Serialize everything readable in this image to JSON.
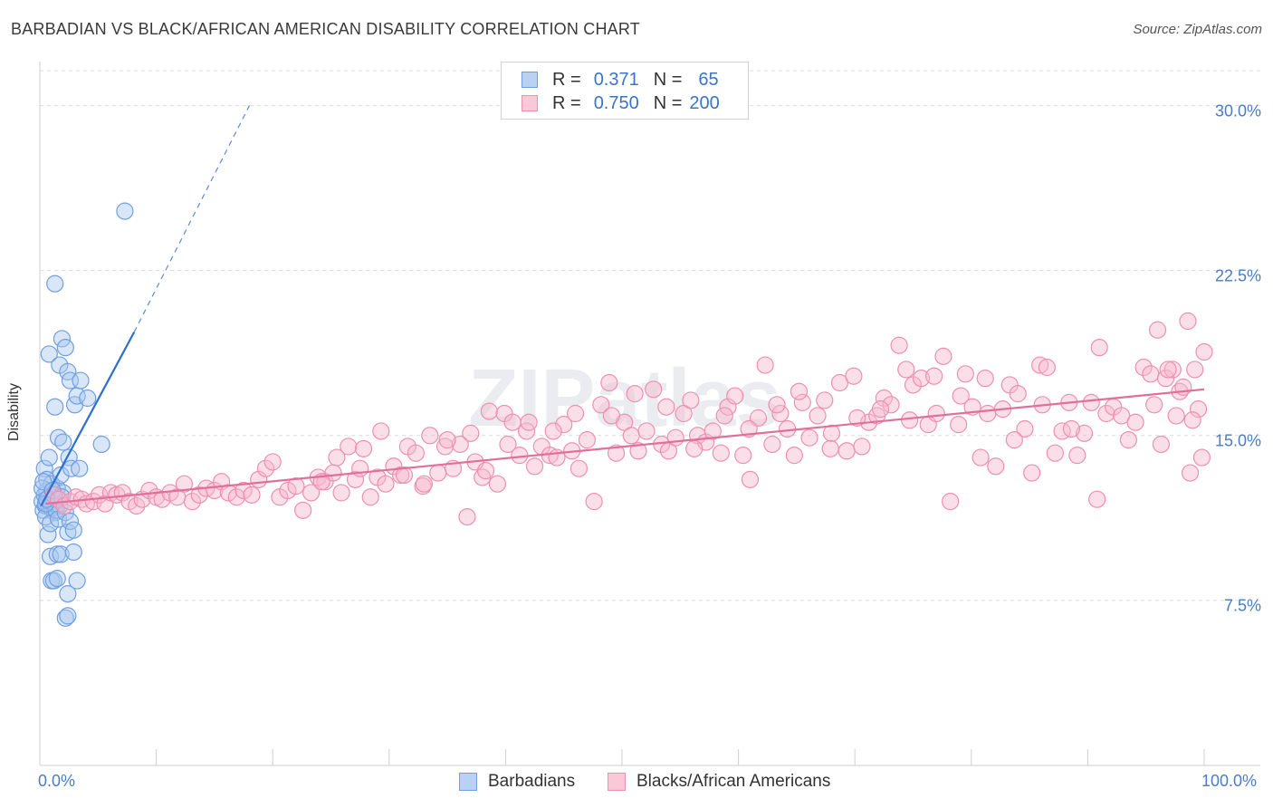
{
  "title": "BARBADIAN VS BLACK/AFRICAN AMERICAN DISABILITY CORRELATION CHART",
  "source": "Source: ZipAtlas.com",
  "watermark": "ZIPatlas",
  "colors": {
    "blue_fill": "#a9c8f0",
    "blue_stroke": "#6f9fe0",
    "blue_line": "#2f6fd0",
    "pink_fill": "#f7b9cc",
    "pink_stroke": "#ef8fb0",
    "pink_line": "#e0709a",
    "tick_text": "#4a7cc7"
  },
  "legend": {
    "rows": [
      {
        "r_label": "R =",
        "r_value": "0.371",
        "n_label": "N =",
        "n_value": "65"
      },
      {
        "r_label": "R =",
        "r_value": "0.750",
        "n_label": "N =",
        "n_value": "200"
      }
    ]
  },
  "bottom_legend": {
    "series1": "Barbadians",
    "series2": "Blacks/African Americans"
  },
  "chart_data": {
    "type": "scatter",
    "title": "BARBADIAN VS BLACK/AFRICAN AMERICAN DISABILITY CORRELATION CHART",
    "xlabel": "",
    "ylabel": "Disability",
    "xlim": [
      0,
      100
    ],
    "ylim": [
      0,
      32
    ],
    "x_tick_labels": [
      "0.0%",
      "100.0%"
    ],
    "y_ticks": [
      7.5,
      15.0,
      22.5,
      30.0
    ],
    "y_tick_labels": [
      "7.5%",
      "15.0%",
      "22.5%",
      "30.0%"
    ],
    "grid": true,
    "legend_position": "top-center",
    "series": [
      {
        "name": "Barbadians",
        "color": "#a9c8f0",
        "trend": {
          "x": [
            0.1,
            8.1
          ],
          "y": [
            11.8,
            19.7
          ],
          "dashed_extension_to": [
            18.0,
            30.0
          ]
        },
        "points": [
          [
            0.2,
            12.0
          ],
          [
            0.3,
            11.6
          ],
          [
            0.4,
            12.3
          ],
          [
            0.5,
            11.8
          ],
          [
            0.6,
            12.5
          ],
          [
            0.7,
            11.9
          ],
          [
            0.8,
            12.2
          ],
          [
            0.9,
            12.0
          ],
          [
            1.0,
            11.7
          ],
          [
            1.1,
            12.4
          ],
          [
            1.2,
            12.1
          ],
          [
            1.3,
            11.5
          ],
          [
            0.4,
            13.5
          ],
          [
            0.6,
            13.0
          ],
          [
            0.8,
            14.0
          ],
          [
            1.0,
            12.8
          ],
          [
            1.5,
            12.6
          ],
          [
            1.7,
            11.8
          ],
          [
            1.8,
            13.2
          ],
          [
            2.0,
            12.4
          ],
          [
            0.5,
            11.3
          ],
          [
            0.7,
            10.5
          ],
          [
            0.9,
            11.0
          ],
          [
            1.4,
            11.6
          ],
          [
            1.6,
            11.2
          ],
          [
            2.2,
            11.5
          ],
          [
            2.4,
            10.6
          ],
          [
            2.6,
            11.1
          ],
          [
            2.9,
            10.7
          ],
          [
            0.8,
            18.7
          ],
          [
            1.3,
            16.3
          ],
          [
            1.6,
            14.9
          ],
          [
            1.7,
            18.2
          ],
          [
            1.9,
            19.4
          ],
          [
            2.0,
            14.7
          ],
          [
            2.2,
            19.0
          ],
          [
            2.4,
            17.9
          ],
          [
            2.5,
            14.0
          ],
          [
            2.6,
            17.5
          ],
          [
            2.7,
            13.5
          ],
          [
            3.0,
            16.4
          ],
          [
            3.2,
            16.8
          ],
          [
            3.4,
            13.5
          ],
          [
            3.5,
            17.5
          ],
          [
            4.1,
            16.7
          ],
          [
            5.3,
            14.6
          ],
          [
            1.3,
            21.9
          ],
          [
            7.3,
            25.2
          ],
          [
            0.9,
            9.5
          ],
          [
            1.5,
            9.6
          ],
          [
            1.8,
            9.6
          ],
          [
            2.9,
            9.7
          ],
          [
            1.0,
            8.4
          ],
          [
            1.2,
            8.4
          ],
          [
            1.5,
            8.5
          ],
          [
            3.2,
            8.4
          ],
          [
            2.4,
            7.8
          ],
          [
            2.2,
            6.7
          ],
          [
            2.4,
            6.8
          ],
          [
            0.2,
            12.6
          ],
          [
            0.3,
            12.9
          ],
          [
            0.5,
            11.9
          ],
          [
            0.6,
            12.1
          ],
          [
            1.1,
            12.5
          ],
          [
            1.9,
            12.2
          ]
        ]
      },
      {
        "name": "Blacks/African Americans",
        "color": "#f7b9cc",
        "trend": {
          "x": [
            0.5,
            100
          ],
          "y": [
            11.9,
            17.1
          ]
        },
        "points": [
          [
            1.2,
            12.3
          ],
          [
            1.6,
            12.1
          ],
          [
            2.1,
            11.8
          ],
          [
            2.6,
            12.0
          ],
          [
            3.1,
            12.2
          ],
          [
            3.6,
            12.1
          ],
          [
            4.0,
            11.9
          ],
          [
            4.6,
            12.0
          ],
          [
            5.1,
            12.3
          ],
          [
            5.6,
            11.9
          ],
          [
            6.1,
            12.4
          ],
          [
            6.6,
            12.3
          ],
          [
            7.1,
            12.4
          ],
          [
            7.7,
            12.0
          ],
          [
            8.3,
            11.8
          ],
          [
            8.8,
            12.1
          ],
          [
            9.4,
            12.5
          ],
          [
            10.0,
            12.2
          ],
          [
            10.5,
            12.1
          ],
          [
            11.2,
            12.4
          ],
          [
            11.8,
            12.2
          ],
          [
            12.4,
            12.8
          ],
          [
            13.1,
            12.0
          ],
          [
            13.7,
            12.3
          ],
          [
            14.3,
            12.6
          ],
          [
            15.0,
            12.5
          ],
          [
            15.6,
            12.9
          ],
          [
            16.2,
            12.4
          ],
          [
            16.9,
            12.2
          ],
          [
            17.5,
            12.5
          ],
          [
            18.2,
            12.3
          ],
          [
            18.8,
            13.0
          ],
          [
            19.4,
            13.5
          ],
          [
            20.0,
            13.8
          ],
          [
            20.6,
            12.2
          ],
          [
            21.3,
            12.5
          ],
          [
            22.0,
            12.7
          ],
          [
            22.6,
            11.6
          ],
          [
            23.3,
            12.4
          ],
          [
            23.9,
            13.1
          ],
          [
            24.5,
            12.9
          ],
          [
            25.2,
            13.3
          ],
          [
            25.9,
            12.4
          ],
          [
            26.5,
            14.5
          ],
          [
            27.1,
            13.0
          ],
          [
            27.8,
            14.4
          ],
          [
            28.4,
            12.2
          ],
          [
            29.0,
            13.1
          ],
          [
            29.7,
            12.8
          ],
          [
            30.4,
            13.6
          ],
          [
            31.0,
            13.2
          ],
          [
            31.6,
            14.5
          ],
          [
            32.3,
            14.2
          ],
          [
            32.9,
            12.7
          ],
          [
            33.5,
            15.0
          ],
          [
            34.2,
            13.3
          ],
          [
            34.8,
            14.5
          ],
          [
            35.5,
            13.5
          ],
          [
            36.1,
            14.6
          ],
          [
            36.7,
            11.3
          ],
          [
            37.4,
            13.8
          ],
          [
            38.0,
            13.1
          ],
          [
            38.6,
            16.1
          ],
          [
            39.3,
            12.8
          ],
          [
            39.9,
            16.0
          ],
          [
            40.6,
            15.6
          ],
          [
            41.2,
            14.1
          ],
          [
            41.8,
            15.2
          ],
          [
            42.5,
            13.6
          ],
          [
            43.1,
            14.5
          ],
          [
            43.8,
            14.1
          ],
          [
            44.4,
            14.0
          ],
          [
            45.0,
            15.5
          ],
          [
            45.7,
            14.3
          ],
          [
            46.3,
            13.5
          ],
          [
            47.0,
            14.8
          ],
          [
            47.6,
            12.0
          ],
          [
            48.2,
            16.4
          ],
          [
            48.9,
            17.4
          ],
          [
            49.5,
            14.2
          ],
          [
            50.2,
            15.6
          ],
          [
            50.8,
            15.0
          ],
          [
            51.4,
            14.3
          ],
          [
            52.1,
            15.2
          ],
          [
            52.7,
            17.1
          ],
          [
            53.4,
            14.6
          ],
          [
            54.0,
            14.3
          ],
          [
            54.6,
            14.9
          ],
          [
            55.3,
            16.0
          ],
          [
            55.9,
            16.6
          ],
          [
            56.5,
            15.0
          ],
          [
            57.2,
            14.7
          ],
          [
            57.8,
            15.2
          ],
          [
            58.5,
            14.2
          ],
          [
            59.1,
            16.3
          ],
          [
            59.7,
            16.8
          ],
          [
            60.4,
            14.1
          ],
          [
            61.0,
            13.0
          ],
          [
            61.7,
            15.8
          ],
          [
            62.3,
            18.2
          ],
          [
            62.9,
            14.6
          ],
          [
            63.6,
            16.0
          ],
          [
            64.2,
            15.3
          ],
          [
            64.8,
            14.1
          ],
          [
            65.5,
            16.5
          ],
          [
            66.1,
            14.9
          ],
          [
            66.8,
            15.9
          ],
          [
            67.4,
            16.6
          ],
          [
            68.0,
            15.1
          ],
          [
            68.7,
            17.4
          ],
          [
            69.3,
            14.3
          ],
          [
            69.9,
            17.7
          ],
          [
            70.6,
            14.5
          ],
          [
            71.2,
            15.6
          ],
          [
            71.9,
            15.9
          ],
          [
            72.5,
            16.7
          ],
          [
            73.1,
            16.4
          ],
          [
            73.8,
            19.1
          ],
          [
            74.4,
            18.0
          ],
          [
            75.0,
            17.3
          ],
          [
            75.7,
            17.6
          ],
          [
            76.3,
            15.5
          ],
          [
            77.0,
            16.0
          ],
          [
            77.6,
            18.6
          ],
          [
            78.2,
            12.0
          ],
          [
            78.9,
            15.5
          ],
          [
            79.5,
            17.8
          ],
          [
            80.1,
            16.3
          ],
          [
            80.8,
            14.0
          ],
          [
            81.4,
            16.0
          ],
          [
            82.1,
            13.6
          ],
          [
            82.7,
            16.2
          ],
          [
            83.3,
            17.3
          ],
          [
            84.0,
            16.9
          ],
          [
            84.6,
            15.3
          ],
          [
            85.2,
            13.3
          ],
          [
            85.9,
            18.2
          ],
          [
            86.5,
            18.1
          ],
          [
            87.2,
            14.2
          ],
          [
            87.8,
            15.2
          ],
          [
            88.4,
            16.5
          ],
          [
            89.1,
            14.1
          ],
          [
            89.7,
            15.1
          ],
          [
            90.3,
            16.5
          ],
          [
            91.0,
            19.0
          ],
          [
            91.6,
            16.0
          ],
          [
            92.2,
            16.3
          ],
          [
            92.9,
            15.9
          ],
          [
            93.5,
            14.8
          ],
          [
            94.1,
            15.6
          ],
          [
            94.8,
            18.1
          ],
          [
            95.4,
            17.8
          ],
          [
            96.0,
            19.8
          ],
          [
            96.7,
            17.6
          ],
          [
            97.3,
            18.0
          ],
          [
            97.9,
            17.0
          ],
          [
            98.6,
            20.2
          ],
          [
            99.2,
            18.0
          ],
          [
            99.8,
            14.0
          ],
          [
            100.0,
            18.8
          ],
          [
            99.5,
            16.2
          ],
          [
            99.0,
            15.7
          ],
          [
            98.8,
            13.3
          ],
          [
            98.2,
            17.2
          ],
          [
            97.6,
            15.9
          ],
          [
            96.9,
            18.0
          ],
          [
            96.3,
            14.6
          ],
          [
            95.7,
            16.4
          ],
          [
            90.8,
            12.1
          ],
          [
            88.6,
            15.3
          ],
          [
            86.1,
            16.4
          ],
          [
            83.7,
            14.8
          ],
          [
            81.2,
            17.6
          ],
          [
            79.1,
            16.8
          ],
          [
            76.8,
            17.7
          ],
          [
            74.7,
            15.7
          ],
          [
            72.2,
            16.2
          ],
          [
            70.2,
            15.8
          ],
          [
            67.9,
            14.4
          ],
          [
            65.2,
            17.0
          ],
          [
            63.3,
            16.4
          ],
          [
            60.9,
            15.3
          ],
          [
            58.8,
            15.9
          ],
          [
            56.2,
            14.4
          ],
          [
            53.8,
            16.3
          ],
          [
            51.1,
            16.9
          ],
          [
            49.1,
            15.9
          ],
          [
            46.0,
            16.0
          ],
          [
            44.1,
            15.2
          ],
          [
            42.0,
            15.6
          ],
          [
            40.2,
            14.6
          ],
          [
            38.3,
            13.4
          ],
          [
            37.0,
            15.1
          ],
          [
            35.0,
            14.8
          ],
          [
            33.0,
            12.8
          ],
          [
            31.3,
            13.2
          ],
          [
            29.3,
            15.2
          ],
          [
            27.5,
            13.5
          ],
          [
            25.5,
            14.0
          ],
          [
            24.2,
            12.9
          ]
        ]
      }
    ]
  }
}
